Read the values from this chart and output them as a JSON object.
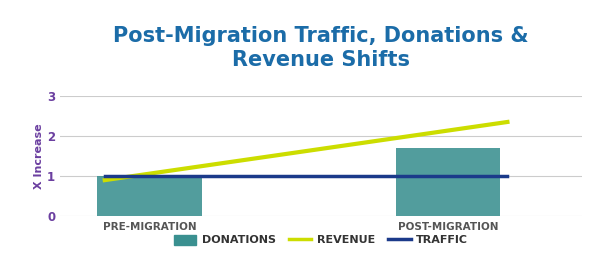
{
  "title": "Post-Migration Traffic, Donations &\nRevenue Shifts",
  "title_color": "#1B6CA8",
  "title_fontsize": 15,
  "ylabel": "X Increase",
  "ylabel_color": "#6B3FA0",
  "ylabel_fontsize": 8,
  "categories": [
    "PRE-MIGRATION",
    "POST-MIGRATION"
  ],
  "bar_values": [
    1.0,
    1.7
  ],
  "bar_color": "#3A9090",
  "bar_width": 0.28,
  "bar_positions": [
    1,
    3
  ],
  "revenue_line_x": [
    0.7,
    3.4
  ],
  "revenue_line_y": [
    0.9,
    2.35
  ],
  "traffic_line_x": [
    0.7,
    3.4
  ],
  "traffic_line_y": [
    1.0,
    1.0
  ],
  "revenue_color": "#CCDD00",
  "traffic_color": "#1B3A8A",
  "revenue_linewidth": 3,
  "traffic_linewidth": 2.5,
  "xlim": [
    0.4,
    3.9
  ],
  "ylim": [
    0,
    3
  ],
  "yticks": [
    0,
    1,
    2,
    3
  ],
  "xtick_color": "#555555",
  "xtick_fontsize": 7.5,
  "ytick_color": "#6B3FA0",
  "ytick_fontsize": 8.5,
  "background_color": "#ffffff",
  "grid_color": "#cccccc",
  "legend_labels": [
    "DONATIONS",
    "REVENUE",
    "TRAFFIC"
  ],
  "legend_fontsize": 8,
  "legend_colors": [
    "#3A9090",
    "#CCDD00",
    "#1B3A8A"
  ]
}
